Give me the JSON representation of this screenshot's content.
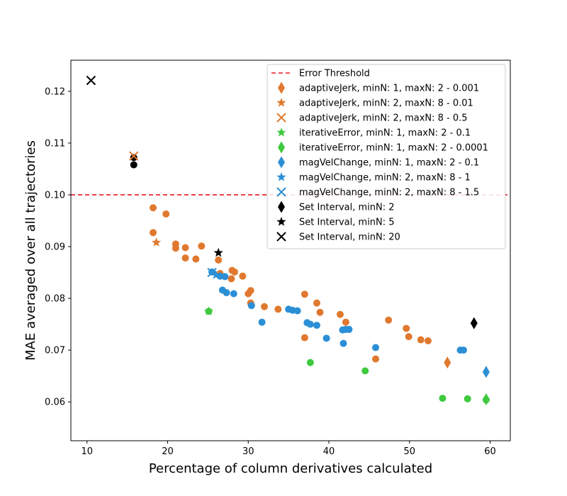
{
  "chart_data": {
    "type": "scatter",
    "title": "",
    "xlabel": "Percentage of column derivatives calculated",
    "ylabel": "MAE averaged over all trajectories",
    "xlim": [
      8,
      62.5
    ],
    "ylim": [
      0.0525,
      0.126
    ],
    "xticks": [
      "10",
      "20",
      "30",
      "40",
      "50",
      "60"
    ],
    "yticks": [
      "0.06",
      "0.07",
      "0.08",
      "0.09",
      "0.10",
      "0.11",
      "0.12"
    ],
    "grid": false,
    "legend_position": "top-right",
    "threshold": {
      "name": "Error Threshold",
      "value": 0.1,
      "color": "#e8191c"
    },
    "colors": {
      "orange": "#e0792f",
      "green": "#3ec93e",
      "blue": "#2b8fd6",
      "black": "#000000"
    },
    "background_points": [
      {
        "color": "orange",
        "points": [
          [
            18.2,
            0.0975
          ],
          [
            18.2,
            0.0927
          ],
          [
            19.8,
            0.0963
          ],
          [
            21,
            0.0905
          ],
          [
            21,
            0.0897
          ],
          [
            22.2,
            0.0898
          ],
          [
            22.2,
            0.0878
          ],
          [
            23.5,
            0.0876
          ],
          [
            24.2,
            0.0901
          ],
          [
            26.3,
            0.0874
          ],
          [
            26.5,
            0.0848
          ],
          [
            27.9,
            0.0838
          ],
          [
            28,
            0.0854
          ],
          [
            28.3,
            0.0851
          ],
          [
            29.3,
            0.0843
          ],
          [
            30,
            0.0809
          ],
          [
            30.3,
            0.0815
          ],
          [
            30.3,
            0.0791
          ],
          [
            32,
            0.0784
          ],
          [
            33.7,
            0.0779
          ],
          [
            37,
            0.0808
          ],
          [
            37,
            0.0724
          ],
          [
            38.5,
            0.0791
          ],
          [
            38.9,
            0.0773
          ],
          [
            41.4,
            0.0769
          ],
          [
            42.1,
            0.0754
          ],
          [
            45.8,
            0.0683
          ],
          [
            47.4,
            0.0758
          ],
          [
            49.6,
            0.0742
          ],
          [
            49.9,
            0.0726
          ],
          [
            51.4,
            0.072
          ],
          [
            52.3,
            0.0718
          ]
        ]
      },
      {
        "color": "blue",
        "points": [
          [
            25.5,
            0.0851
          ],
          [
            26.5,
            0.0843
          ],
          [
            26.8,
            0.0816
          ],
          [
            27.1,
            0.0842
          ],
          [
            27.3,
            0.0811
          ],
          [
            28.2,
            0.0809
          ],
          [
            30.4,
            0.0786
          ],
          [
            31.7,
            0.0754
          ],
          [
            35,
            0.0779
          ],
          [
            35.5,
            0.0777
          ],
          [
            36.1,
            0.0776
          ],
          [
            37.3,
            0.0753
          ],
          [
            37.7,
            0.075
          ],
          [
            38.5,
            0.0748
          ],
          [
            39.7,
            0.0723
          ],
          [
            41.7,
            0.0739
          ],
          [
            41.8,
            0.0713
          ],
          [
            42.1,
            0.074
          ],
          [
            42.5,
            0.074
          ],
          [
            45.8,
            0.0705
          ],
          [
            56.3,
            0.07
          ],
          [
            56.7,
            0.07
          ]
        ]
      },
      {
        "color": "green",
        "points": [
          [
            25.1,
            0.0775
          ],
          [
            37.7,
            0.0676
          ],
          [
            44.5,
            0.066
          ],
          [
            54.1,
            0.0607
          ],
          [
            57.2,
            0.0606
          ],
          [
            59.5,
            0.0604
          ]
        ]
      },
      {
        "color": "black",
        "points": [
          [
            15.8,
            0.1072
          ],
          [
            15.8,
            0.1058
          ]
        ]
      }
    ],
    "series": [
      {
        "name": "adaptiveJerk, minN: 1, maxN: 2 - 0.001",
        "color": "orange",
        "marker": "diamond",
        "points": [
          [
            54.7,
            0.0676
          ]
        ]
      },
      {
        "name": "adaptiveJerk, minN: 2, maxN: 8 - 0.01",
        "color": "orange",
        "marker": "star",
        "points": [
          [
            18.6,
            0.0908
          ]
        ]
      },
      {
        "name": "adaptiveJerk, minN: 2, maxN: 8 - 0.5",
        "color": "orange",
        "marker": "x",
        "points": [
          [
            15.8,
            0.1075
          ]
        ]
      },
      {
        "name": "iterativeError, minN: 1, maxN: 2 - 0.1",
        "color": "green",
        "marker": "star",
        "points": [
          [
            25.1,
            0.0775
          ]
        ]
      },
      {
        "name": "iterativeError, minN: 1, maxN: 2 - 0.0001",
        "color": "green",
        "marker": "diamond",
        "points": [
          [
            59.5,
            0.0605
          ]
        ]
      },
      {
        "name": "magVelChange, minN: 1, maxN: 2 - 0.1",
        "color": "blue",
        "marker": "diamond",
        "points": [
          [
            59.5,
            0.0658
          ]
        ]
      },
      {
        "name": "magVelChange, minN: 2, maxN: 8 - 1",
        "color": "blue",
        "marker": "star",
        "points": [
          [
            26,
            0.0845
          ]
        ]
      },
      {
        "name": "magVelChange, minN: 2, maxN: 8 - 1.5",
        "color": "blue",
        "marker": "x",
        "points": [
          [
            25.5,
            0.085
          ]
        ]
      },
      {
        "name": "Set Interval, minN: 2",
        "color": "black",
        "marker": "diamond",
        "points": [
          [
            58,
            0.0752
          ]
        ]
      },
      {
        "name": "Set Interval, minN: 5",
        "color": "black",
        "marker": "star",
        "points": [
          [
            26.3,
            0.0888
          ]
        ]
      },
      {
        "name": "Set Interval, minN: 20",
        "color": "black",
        "marker": "x",
        "points": [
          [
            10.5,
            0.1221
          ]
        ]
      }
    ]
  }
}
